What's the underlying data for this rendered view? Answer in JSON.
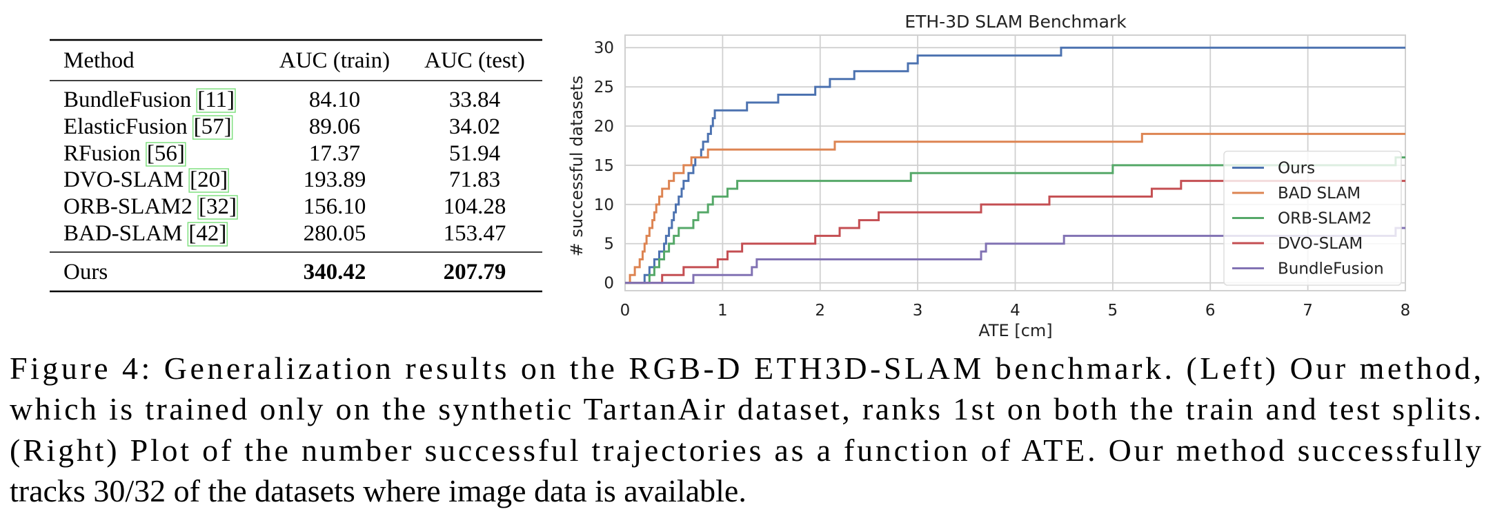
{
  "table": {
    "header": [
      "Method",
      "AUC (train)",
      "AUC (test)"
    ],
    "rows": [
      {
        "method": "BundleFusion",
        "cite": "[11]",
        "train": "84.10",
        "test": "33.84"
      },
      {
        "method": "ElasticFusion",
        "cite": "[57]",
        "train": "89.06",
        "test": "34.02"
      },
      {
        "method": "RFusion",
        "cite": "[56]",
        "train": "17.37",
        "test": "51.94"
      },
      {
        "method": "DVO-SLAM",
        "cite": "[20]",
        "train": "193.89",
        "test": "71.83"
      },
      {
        "method": "ORB-SLAM2",
        "cite": "[32]",
        "train": "156.10",
        "test": "104.28"
      },
      {
        "method": "BAD-SLAM",
        "cite": "[42]",
        "train": "280.05",
        "test": "153.47"
      }
    ],
    "best": {
      "method": "Ours",
      "train": "340.42",
      "test": "207.79"
    }
  },
  "chart_data": {
    "type": "line",
    "step": "post",
    "title": "ETH-3D SLAM Benchmark",
    "x_label": "ATE [cm]",
    "y_label": "# successful datasets",
    "xlim": [
      0,
      8
    ],
    "ylim": [
      -1,
      31.6
    ],
    "xticks": [
      0,
      1,
      2,
      3,
      4,
      5,
      6,
      7,
      8
    ],
    "yticks": [
      0,
      5,
      10,
      15,
      20,
      25,
      30
    ],
    "grid": true,
    "legend": "lower right",
    "series": [
      {
        "name": "Ours",
        "color": "#4c72b0",
        "x": [
          0,
          0.2,
          0.25,
          0.3,
          0.35,
          0.4,
          0.42,
          0.45,
          0.48,
          0.5,
          0.52,
          0.55,
          0.58,
          0.6,
          0.65,
          0.7,
          0.72,
          0.78,
          0.8,
          0.85,
          0.88,
          0.9,
          0.92,
          1.25,
          1.57,
          1.95,
          2.1,
          2.35,
          2.9,
          3.0,
          4.47,
          8
        ],
        "values": [
          0,
          1,
          2,
          3,
          4,
          5,
          6,
          7,
          8,
          9,
          10,
          11,
          12,
          13,
          14,
          15,
          16,
          17,
          18,
          19,
          20,
          21,
          22,
          23,
          24,
          25,
          26,
          27,
          28,
          29,
          30,
          30
        ]
      },
      {
        "name": "BAD SLAM",
        "color": "#dd8452",
        "x": [
          0,
          0.05,
          0.1,
          0.15,
          0.18,
          0.2,
          0.22,
          0.25,
          0.28,
          0.3,
          0.32,
          0.35,
          0.38,
          0.45,
          0.5,
          0.6,
          0.68,
          0.85,
          2.15,
          5.3,
          8
        ],
        "values": [
          0,
          1,
          2,
          3,
          4,
          5,
          6,
          7,
          8,
          9,
          10,
          11,
          12,
          13,
          14,
          15,
          16,
          17,
          18,
          19,
          19
        ]
      },
      {
        "name": "ORB-SLAM2",
        "color": "#55a868",
        "x": [
          0,
          0.25,
          0.3,
          0.35,
          0.4,
          0.45,
          0.5,
          0.55,
          0.7,
          0.75,
          0.85,
          0.9,
          1.05,
          1.15,
          2.93,
          5.0,
          7.9,
          8
        ],
        "values": [
          0,
          1,
          2,
          3,
          4,
          5,
          6,
          7,
          8,
          9,
          10,
          11,
          12,
          13,
          14,
          15,
          16,
          16
        ]
      },
      {
        "name": "DVO-SLAM",
        "color": "#c44e52",
        "x": [
          0,
          0.38,
          0.6,
          0.95,
          1.05,
          1.2,
          1.95,
          2.2,
          2.4,
          2.6,
          3.65,
          4.35,
          5.4,
          5.7,
          8
        ],
        "values": [
          0,
          1,
          2,
          3,
          4,
          5,
          6,
          7,
          8,
          9,
          10,
          11,
          12,
          13,
          13
        ]
      },
      {
        "name": "BundleFusion",
        "color": "#8172b3",
        "x": [
          0,
          0.7,
          1.3,
          1.35,
          3.65,
          3.7,
          4.5,
          7.9,
          8
        ],
        "values": [
          0,
          1,
          2,
          3,
          4,
          5,
          6,
          7,
          7
        ]
      }
    ]
  },
  "caption": [
    "Figure 4:  Generalization results on the RGB-D ETH3D-SLAM benchmark.  (Left) Our method,",
    "which is trained only on the synthetic TartanAir dataset, ranks 1st on both the train and test splits.",
    "(Right) Plot of the number successful trajectories as a function of ATE. Our method successfully",
    "tracks 30/32 of the datasets where image data is available."
  ]
}
